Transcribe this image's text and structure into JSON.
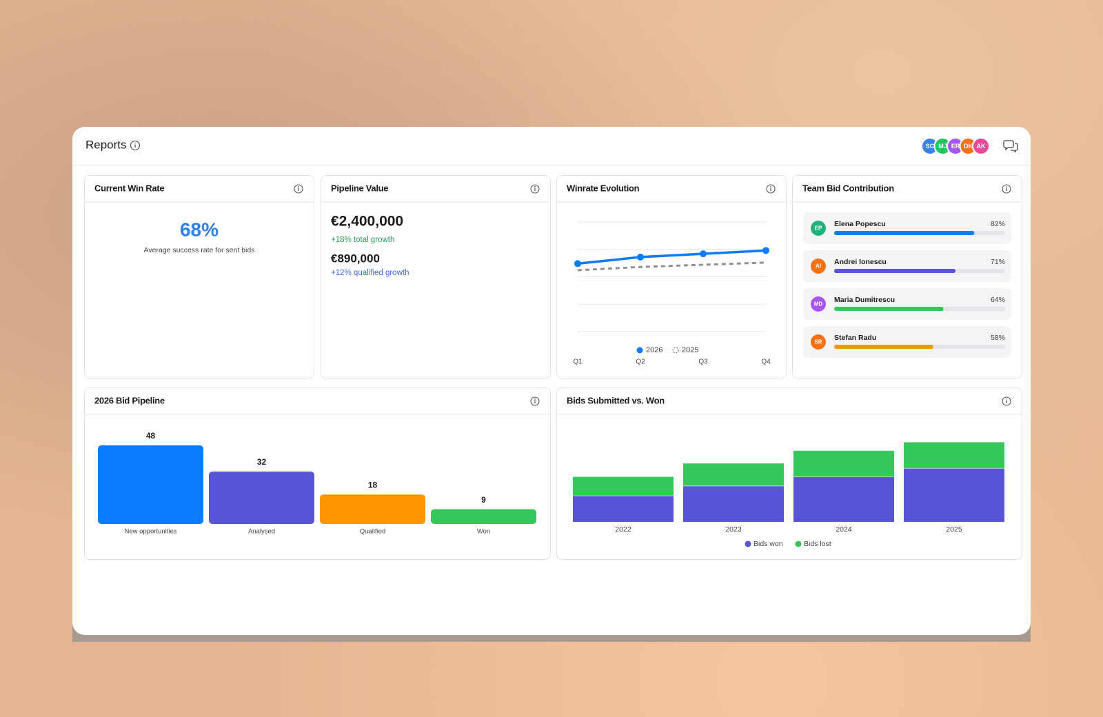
{
  "header": {
    "title": "Reports",
    "avatars": [
      "SC",
      "MJ",
      "ER",
      "DK",
      "AK"
    ]
  },
  "win_rate": {
    "title": "Current Win Rate",
    "value": "68%",
    "caption": "Average success rate for sent bids"
  },
  "pipeline_value": {
    "title": "Pipeline Value",
    "total": "€2,400,000",
    "total_growth": "+18% total growth",
    "qualified": "€890,000",
    "qualified_growth": "+12% qualified growth"
  },
  "chart_data": [
    {
      "type": "line",
      "title": "Winrate Evolution",
      "categories": [
        "Q1",
        "Q2",
        "Q3",
        "Q4"
      ],
      "series": [
        {
          "name": "2026",
          "color": "#0a7cff",
          "style": "solid",
          "markers": true,
          "values": [
            62,
            68,
            71,
            74
          ]
        },
        {
          "name": "2025",
          "color": "#8e8e93",
          "style": "dashed",
          "markers": false,
          "values": [
            56,
            59,
            61,
            63
          ]
        }
      ],
      "ylim": [
        0,
        100
      ],
      "grid": true
    },
    {
      "type": "hbar",
      "title": "Team Bid Contribution",
      "categories": [
        "Elena Popescu",
        "Andrei Ionescu",
        "Maria Dumitrescu",
        "Stefan Radu"
      ],
      "initials": [
        "EP",
        "AI",
        "MD",
        "SR"
      ],
      "avatar_colors": [
        "#1fb57a",
        "#f97316",
        "#a855f7",
        "#f97316"
      ],
      "colors": [
        "#0a7cff",
        "#5856d6",
        "#34c759",
        "#ff9500"
      ],
      "values": [
        82,
        71,
        64,
        58
      ],
      "value_labels": [
        "82%",
        "71%",
        "64%",
        "58%"
      ],
      "xlim": [
        0,
        100
      ]
    },
    {
      "type": "bar",
      "title": "2026 Bid Pipeline",
      "categories": [
        "New opportunities",
        "Analysed",
        "Qualified",
        "Won"
      ],
      "values": [
        48,
        32,
        18,
        9
      ],
      "colors": [
        "#0a7cff",
        "#5856d6",
        "#ff9500",
        "#34c759"
      ],
      "ylim": [
        0,
        48
      ]
    },
    {
      "type": "stacked_bar",
      "title": "Bids Submitted vs. Won",
      "categories": [
        "2022",
        "2023",
        "2024",
        "2025"
      ],
      "series": [
        {
          "name": "Bids won",
          "color": "#5856d6",
          "values": [
            37,
            51,
            64,
            76
          ]
        },
        {
          "name": "Bids lost",
          "color": "#34c759",
          "values": [
            27,
            32,
            37,
            37
          ]
        }
      ],
      "ylim": [
        0,
        140
      ]
    }
  ]
}
